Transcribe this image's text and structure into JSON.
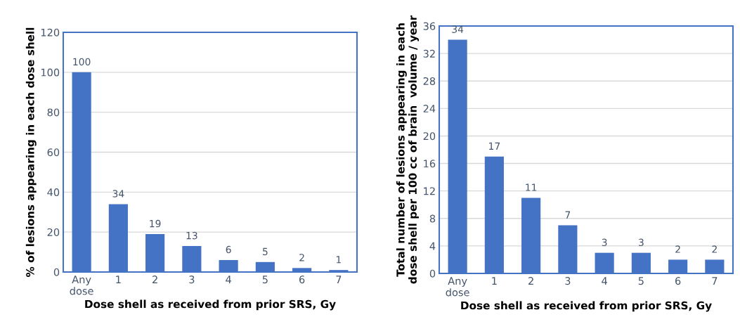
{
  "chart_data": [
    {
      "type": "bar",
      "ylabel": "% of lesions appearing in each dose shell",
      "xlabel": "Dose shell as received from prior SRS, Gy",
      "categories": [
        "Any\ndose",
        "1",
        "2",
        "3",
        "4",
        "5",
        "6",
        "7"
      ],
      "values": [
        100,
        34,
        19,
        13,
        6,
        5,
        2,
        1
      ],
      "color": "#4472c4",
      "ylim": [
        0,
        120
      ],
      "yticks": [
        0,
        20,
        40,
        60,
        80,
        100,
        120
      ],
      "grid": "y",
      "data_labels": true
    },
    {
      "type": "bar",
      "ylabel": "Total number of lesions appearing in each\ndose shell per 100 cc of brain  volume / year",
      "xlabel": "Dose shell as received from prior SRS, Gy",
      "categories": [
        "Any\ndose",
        "1",
        "2",
        "3",
        "4",
        "5",
        "6",
        "7"
      ],
      "values": [
        34,
        17,
        11,
        7,
        3,
        3,
        2,
        2
      ],
      "color": "#4472c4",
      "ylim": [
        0,
        36
      ],
      "yticks": [
        0,
        4,
        8,
        12,
        16,
        20,
        24,
        28,
        32,
        36
      ],
      "grid": "y",
      "data_labels": true
    }
  ]
}
